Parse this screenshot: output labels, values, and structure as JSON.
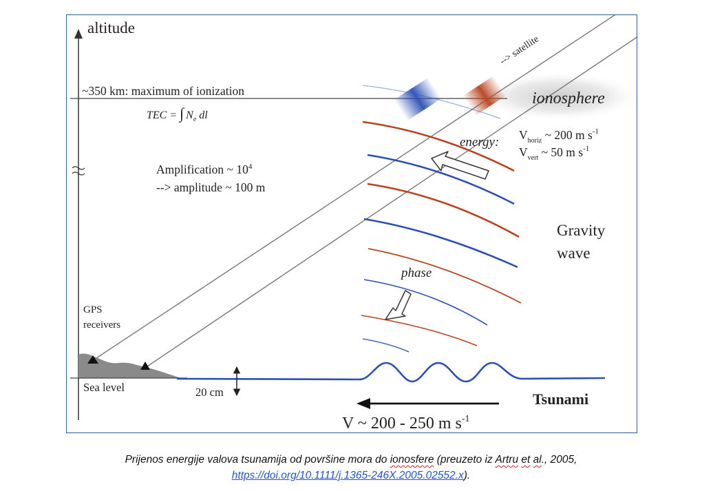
{
  "diagram": {
    "altitude_label": "altitude",
    "ionization_label": "~350 km: maximum of ionization",
    "tec_formula": {
      "lhs": "TEC = ",
      "integral": "∫",
      "n": "N",
      "sub": "e",
      "dl": " dl"
    },
    "satellite_label": "--> satellite",
    "ionosphere_label": "ionosphere",
    "energy_label": "energy:",
    "v_horiz": {
      "v": "V",
      "sub": "horiz",
      "rest": " ~ 200 m s",
      "sup": "-1"
    },
    "v_vert": {
      "v": "V",
      "sub": "vert",
      "rest": " ~ 50 m s",
      "sup": "-1"
    },
    "amplification": {
      "text": "Amplification ~ 10",
      "sup": "4"
    },
    "amplitude_label": "--> amplitude ~ 100 m",
    "gravity_wave": [
      "Gravity",
      "wave"
    ],
    "phase_label": "phase",
    "gps_receivers": [
      "GPS",
      "receivers"
    ],
    "sea_level_label": "Sea level",
    "wave_height_label": "20 cm",
    "tsunami_label": "Tsunami",
    "speed": {
      "text": "V ~ 200 - 250 m s",
      "sup": "-1"
    },
    "colors": {
      "blue_wave": "#2a4fb5",
      "red_wave": "#b8431e",
      "tsunami_text": "#2c4aa6",
      "land": "#8a8a8a"
    }
  },
  "caption": {
    "part1": "Prijenos energije valova tsunamija od površine mora do ",
    "word_ionosfere": "ionosfere",
    "part2": " (preuzeto iz ",
    "word_artru": "Artru",
    "space": " ",
    "word_et": "et",
    "space2": " ",
    "word_al": "al",
    "part3": "., 2005,",
    "link": "https://doi.org/10.1111/j.1365-246X.2005.02552.x",
    "part4": ")."
  }
}
